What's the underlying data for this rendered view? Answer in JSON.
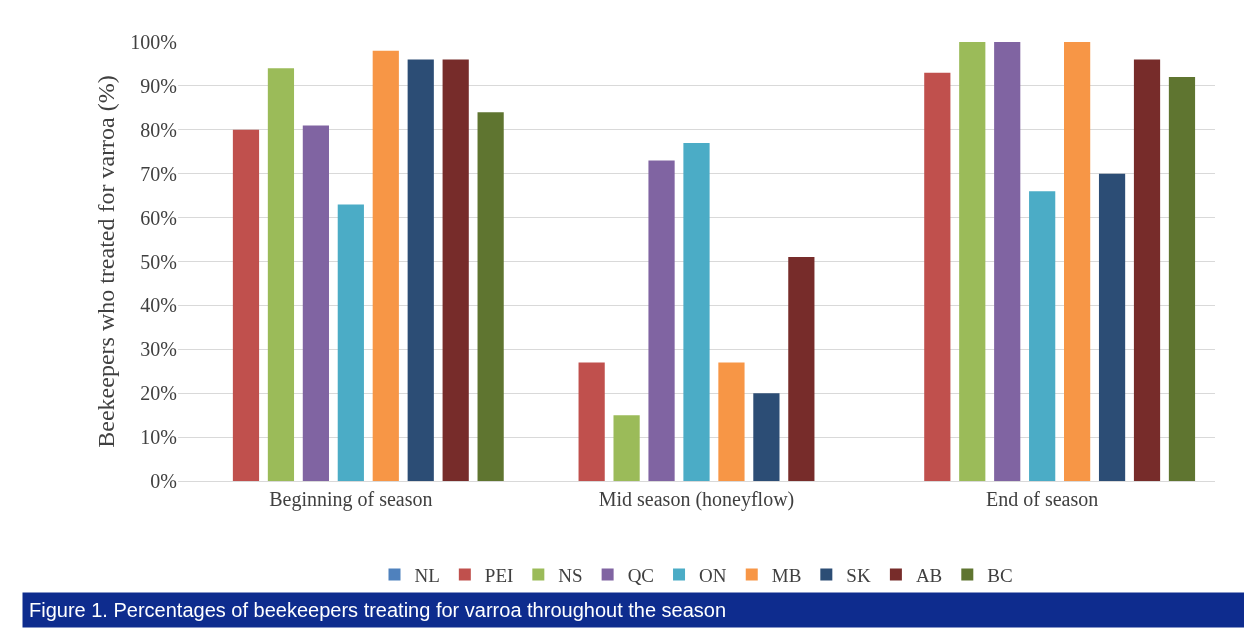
{
  "chart_data": {
    "type": "bar",
    "ylabel": "Beekeepers who treated for varroa (%)",
    "categories": [
      "Beginning of season",
      "Mid season (honeyflow)",
      "End of season"
    ],
    "series": [
      {
        "name": "NL",
        "color": "#4f81bd",
        "values": [
          0,
          0,
          0
        ]
      },
      {
        "name": "PEI",
        "color": "#c0504d",
        "values": [
          80,
          27,
          93
        ]
      },
      {
        "name": "NS",
        "color": "#9bbb59",
        "values": [
          94,
          15,
          100
        ]
      },
      {
        "name": "QC",
        "color": "#8064a2",
        "values": [
          81,
          73,
          100
        ]
      },
      {
        "name": "ON",
        "color": "#4bacc6",
        "values": [
          63,
          77,
          66
        ]
      },
      {
        "name": "MB",
        "color": "#f79646",
        "values": [
          98,
          27,
          100
        ]
      },
      {
        "name": "SK",
        "color": "#2c4d75",
        "values": [
          96,
          20,
          70
        ]
      },
      {
        "name": "AB",
        "color": "#772c2a",
        "values": [
          96,
          51,
          96
        ]
      },
      {
        "name": "BC",
        "color": "#5f7530",
        "values": [
          84,
          0,
          92
        ]
      }
    ],
    "ylim": [
      0,
      100
    ],
    "yticks": [
      {
        "value": 0,
        "label": "0%"
      },
      {
        "value": 10,
        "label": "10%"
      },
      {
        "value": 20,
        "label": "20%"
      },
      {
        "value": 30,
        "label": "30%"
      },
      {
        "value": 40,
        "label": "40%"
      },
      {
        "value": 50,
        "label": "50%"
      },
      {
        "value": 60,
        "label": "60%"
      },
      {
        "value": 70,
        "label": "70%"
      },
      {
        "value": 80,
        "label": "80%"
      },
      {
        "value": 90,
        "label": "90%"
      },
      {
        "value": 100,
        "label": "100%"
      }
    ],
    "grid": "y",
    "legend": "bottom",
    "annotations": [
      "Figure 1. Percentages of beekeepers treating for varroa throughout the season"
    ]
  }
}
